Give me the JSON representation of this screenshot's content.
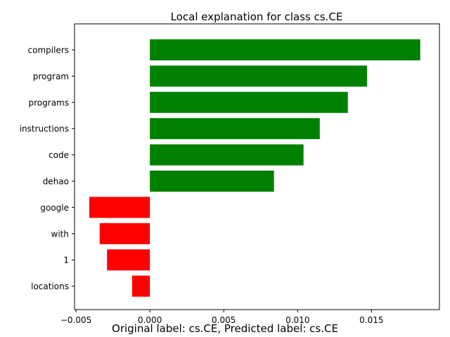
{
  "chart_data": {
    "type": "bar",
    "orientation": "horizontal",
    "title": "Local explanation for class cs.CE",
    "categories": [
      "compilers",
      "program",
      "programs",
      "instructions",
      "code",
      "dehao",
      "google",
      "with",
      "1",
      "locations"
    ],
    "values": [
      0.0183,
      0.0147,
      0.0134,
      0.0115,
      0.0104,
      0.0084,
      -0.0041,
      -0.0034,
      -0.0029,
      -0.0012
    ],
    "xlim": [
      -0.0051,
      0.0196
    ],
    "xticks": [
      -0.005,
      0.0,
      0.005,
      0.01,
      0.015
    ],
    "xtick_labels": [
      "−0.005",
      "0.000",
      "0.005",
      "0.010",
      "0.015"
    ],
    "positive_color": "#008000",
    "negative_color": "#ff0000",
    "grid": false,
    "legend": "none"
  },
  "caption": "Original label: cs.CE, Predicted label: cs.CE"
}
